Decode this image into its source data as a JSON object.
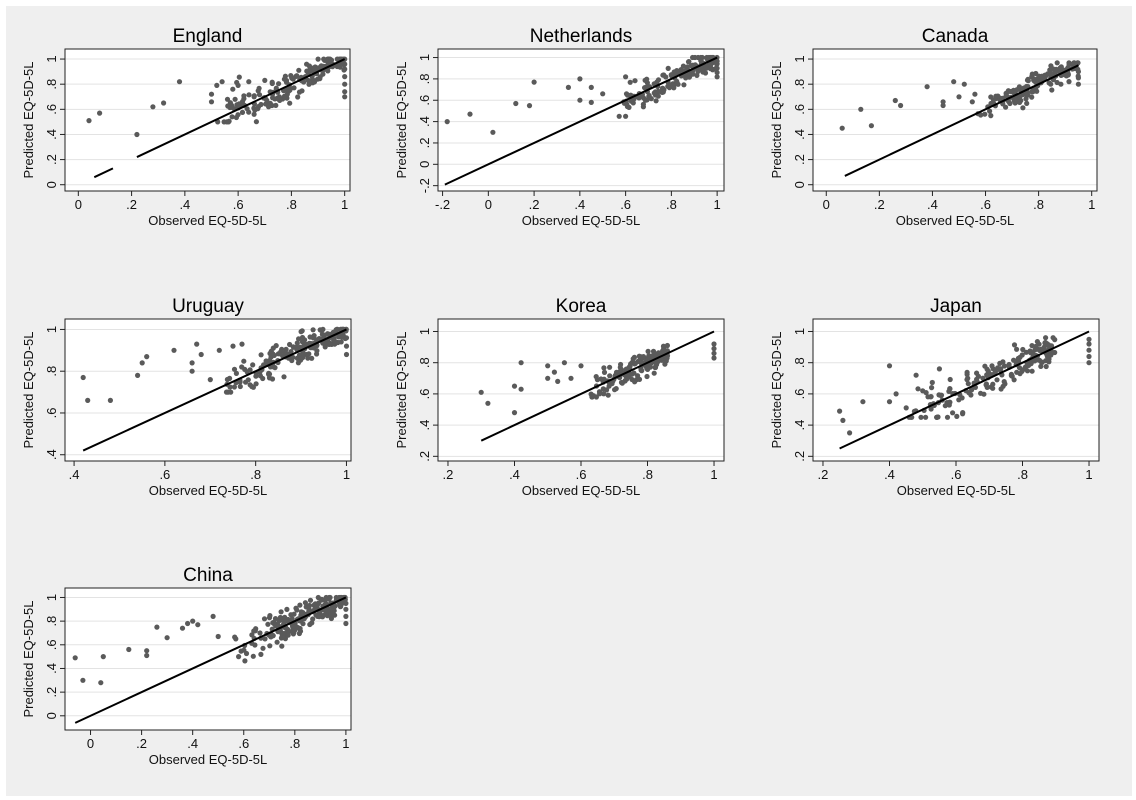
{
  "figure": {
    "background": "#efefef",
    "point_color": "#5a5a5a",
    "line_color": "#000000"
  },
  "chart_data": [
    {
      "type": "scatter",
      "title": "England",
      "xlabel": "Observed EQ-5D-5L",
      "ylabel": "Predicted EQ-5D-5L",
      "xlim": [
        -0.05,
        1.02
      ],
      "ylim": [
        -0.05,
        1.08
      ],
      "xticks": [
        "0",
        ".2",
        ".4",
        ".6",
        ".8",
        "1"
      ],
      "xtick_values": [
        0,
        0.2,
        0.4,
        0.6,
        0.8,
        1
      ],
      "yticks": [
        "0",
        ".2",
        ".4",
        ".6",
        ".8",
        "1"
      ],
      "ytick_values": [
        0,
        0.2,
        0.4,
        0.6,
        0.8,
        1
      ],
      "grid": true,
      "fit_line": [
        [
          0.06,
          0.06
        ],
        [
          1.0,
          1.0
        ]
      ],
      "fit_line_gap": [
        0.13,
        0.22
      ],
      "seed": 11,
      "cluster": {
        "x_lo": 0.52,
        "x_hi": 1.0,
        "n": 170,
        "resid_sd": 0.07,
        "ymin": 0.5,
        "ymax": 1.0
      },
      "points": [
        [
          0.04,
          0.51
        ],
        [
          0.08,
          0.57
        ],
        [
          0.22,
          0.4
        ],
        [
          0.28,
          0.62
        ],
        [
          0.32,
          0.65
        ],
        [
          0.38,
          0.82
        ],
        [
          0.5,
          0.66
        ],
        [
          0.5,
          0.72
        ],
        [
          0.52,
          0.79
        ],
        [
          0.54,
          0.82
        ],
        [
          0.56,
          0.68
        ],
        [
          0.58,
          0.76
        ],
        [
          0.6,
          0.79
        ],
        [
          0.62,
          0.63
        ],
        [
          0.64,
          0.82
        ],
        [
          0.66,
          0.56
        ],
        [
          0.66,
          0.7
        ],
        [
          0.7,
          0.83
        ],
        [
          1.0,
          0.7
        ],
        [
          1.0,
          0.74
        ],
        [
          1.0,
          0.8
        ],
        [
          1.0,
          0.86
        ],
        [
          1.0,
          0.92
        ],
        [
          1.0,
          0.96
        ],
        [
          1.0,
          1.0
        ]
      ]
    },
    {
      "type": "scatter",
      "title": "Netherlands",
      "xlabel": "Observed EQ-5D-5L",
      "ylabel": "Predicted EQ-5D-5L",
      "xlim": [
        -0.22,
        1.03
      ],
      "ylim": [
        -0.25,
        1.08
      ],
      "xticks": [
        "-.2",
        "0",
        ".2",
        ".4",
        ".6",
        ".8",
        "1"
      ],
      "xtick_values": [
        -0.2,
        0,
        0.2,
        0.4,
        0.6,
        0.8,
        1
      ],
      "yticks": [
        "-.2",
        "0",
        ".2",
        ".4",
        ".6",
        ".8",
        "1"
      ],
      "ytick_values": [
        -0.2,
        0,
        0.2,
        0.4,
        0.6,
        0.8,
        1
      ],
      "grid": true,
      "fit_line": [
        [
          -0.19,
          -0.19
        ],
        [
          1.0,
          1.0
        ]
      ],
      "seed": 23,
      "cluster": {
        "x_lo": 0.55,
        "x_hi": 1.0,
        "n": 170,
        "resid_sd": 0.07,
        "ymin": 0.45,
        "ymax": 1.0
      },
      "points": [
        [
          -0.18,
          0.4
        ],
        [
          -0.08,
          0.47
        ],
        [
          0.02,
          0.3
        ],
        [
          0.12,
          0.57
        ],
        [
          0.18,
          0.55
        ],
        [
          0.2,
          0.77
        ],
        [
          0.35,
          0.72
        ],
        [
          0.4,
          0.8
        ],
        [
          0.4,
          0.6
        ],
        [
          0.45,
          0.58
        ],
        [
          0.45,
          0.72
        ],
        [
          0.5,
          0.66
        ],
        [
          0.6,
          0.45
        ],
        [
          0.6,
          0.82
        ],
        [
          1.0,
          0.82
        ],
        [
          1.0,
          0.86
        ],
        [
          1.0,
          0.9
        ],
        [
          1.0,
          0.94
        ]
      ]
    },
    {
      "type": "scatter",
      "title": "Canada",
      "xlabel": "Observed EQ-5D-5L",
      "ylabel": "Predicted EQ-5D-5L",
      "xlim": [
        -0.05,
        1.02
      ],
      "ylim": [
        -0.05,
        1.08
      ],
      "xticks": [
        "0",
        ".2",
        ".4",
        ".6",
        ".8",
        "1"
      ],
      "xtick_values": [
        0,
        0.2,
        0.4,
        0.6,
        0.8,
        1
      ],
      "yticks": [
        "0",
        ".2",
        ".4",
        ".6",
        ".8",
        "1"
      ],
      "ytick_values": [
        0,
        0.2,
        0.4,
        0.6,
        0.8,
        1
      ],
      "grid": true,
      "fit_line": [
        [
          0.07,
          0.07
        ],
        [
          0.95,
          0.95
        ]
      ],
      "seed": 37,
      "cluster": {
        "x_lo": 0.55,
        "x_hi": 0.95,
        "n": 165,
        "resid_sd": 0.06,
        "ymin": 0.55,
        "ymax": 0.97
      },
      "points": [
        [
          0.06,
          0.45
        ],
        [
          0.13,
          0.6
        ],
        [
          0.17,
          0.47
        ],
        [
          0.26,
          0.67
        ],
        [
          0.28,
          0.63
        ],
        [
          0.38,
          0.78
        ],
        [
          0.44,
          0.66
        ],
        [
          0.44,
          0.63
        ],
        [
          0.48,
          0.82
        ],
        [
          0.5,
          0.7
        ],
        [
          0.52,
          0.8
        ],
        [
          0.55,
          0.66
        ],
        [
          0.56,
          0.72
        ],
        [
          0.95,
          0.8
        ],
        [
          0.95,
          0.85
        ],
        [
          0.95,
          0.9
        ]
      ]
    },
    {
      "type": "scatter",
      "title": "Uruguay",
      "xlabel": "Observed EQ-5D-5L",
      "ylabel": "Predicted EQ-5D-5L",
      "xlim": [
        0.38,
        1.01
      ],
      "ylim": [
        0.37,
        1.05
      ],
      "xticks": [
        ".4",
        ".6",
        ".8",
        "1"
      ],
      "xtick_values": [
        0.4,
        0.6,
        0.8,
        1
      ],
      "yticks": [
        ".4",
        ".6",
        ".8",
        "1"
      ],
      "ytick_values": [
        0.4,
        0.6,
        0.8,
        1
      ],
      "grid": true,
      "fit_line": [
        [
          0.42,
          0.42
        ],
        [
          1.0,
          1.0
        ]
      ],
      "seed": 41,
      "cluster": {
        "x_lo": 0.72,
        "x_hi": 1.0,
        "n": 185,
        "resid_sd": 0.045,
        "ymin": 0.7,
        "ymax": 1.0
      },
      "points": [
        [
          0.42,
          0.77
        ],
        [
          0.43,
          0.66
        ],
        [
          0.48,
          0.66
        ],
        [
          0.54,
          0.78
        ],
        [
          0.55,
          0.84
        ],
        [
          0.56,
          0.87
        ],
        [
          0.62,
          0.9
        ],
        [
          0.66,
          0.84
        ],
        [
          0.66,
          0.8
        ],
        [
          0.67,
          0.93
        ],
        [
          0.68,
          0.88
        ],
        [
          0.7,
          0.76
        ],
        [
          0.72,
          0.9
        ],
        [
          0.75,
          0.92
        ],
        [
          0.77,
          0.93
        ],
        [
          1.0,
          0.88
        ],
        [
          1.0,
          0.92
        ],
        [
          1.0,
          0.96
        ]
      ]
    },
    {
      "type": "scatter",
      "title": "Korea",
      "xlabel": "Observed EQ-5D-5L",
      "ylabel": "Predicted EQ-5D-5L",
      "xlim": [
        0.17,
        1.03
      ],
      "ylim": [
        0.17,
        1.08
      ],
      "xticks": [
        ".2",
        ".4",
        ".6",
        ".8",
        "1"
      ],
      "xtick_values": [
        0.2,
        0.4,
        0.6,
        0.8,
        1
      ],
      "yticks": [
        ".2",
        ".4",
        ".6",
        ".8",
        "1"
      ],
      "ytick_values": [
        0.2,
        0.4,
        0.6,
        0.8,
        1
      ],
      "grid": true,
      "fit_line": [
        [
          0.3,
          0.3
        ],
        [
          1.0,
          1.0
        ]
      ],
      "seed": 53,
      "cluster": {
        "x_lo": 0.62,
        "x_hi": 0.86,
        "n": 175,
        "resid_sd": 0.045,
        "ymin": 0.58,
        "ymax": 0.92
      },
      "points": [
        [
          0.3,
          0.61
        ],
        [
          0.32,
          0.54
        ],
        [
          0.4,
          0.48
        ],
        [
          0.4,
          0.65
        ],
        [
          0.42,
          0.63
        ],
        [
          0.42,
          0.8
        ],
        [
          0.5,
          0.7
        ],
        [
          0.5,
          0.78
        ],
        [
          0.52,
          0.74
        ],
        [
          0.53,
          0.68
        ],
        [
          0.55,
          0.8
        ],
        [
          0.57,
          0.7
        ],
        [
          0.6,
          0.78
        ],
        [
          1.0,
          0.83
        ],
        [
          1.0,
          0.86
        ],
        [
          1.0,
          0.89
        ],
        [
          1.0,
          0.92
        ]
      ]
    },
    {
      "type": "scatter",
      "title": "Japan",
      "xlabel": "Observed EQ-5D-5L",
      "ylabel": "Predicted EQ-5D-5L",
      "xlim": [
        0.17,
        1.03
      ],
      "ylim": [
        0.17,
        1.08
      ],
      "xticks": [
        ".2",
        ".4",
        ".6",
        ".8",
        "1"
      ],
      "xtick_values": [
        0.2,
        0.4,
        0.6,
        0.8,
        1
      ],
      "yticks": [
        ".2",
        ".4",
        ".6",
        ".8",
        "1"
      ],
      "ytick_values": [
        0.2,
        0.4,
        0.6,
        0.8,
        1
      ],
      "grid": true,
      "fit_line": [
        [
          0.25,
          0.25
        ],
        [
          1.0,
          1.0
        ]
      ],
      "seed": 67,
      "cluster": {
        "x_lo": 0.45,
        "x_hi": 0.9,
        "n": 175,
        "resid_sd": 0.07,
        "ymin": 0.45,
        "ymax": 0.96
      },
      "points": [
        [
          0.25,
          0.49
        ],
        [
          0.26,
          0.43
        ],
        [
          0.28,
          0.35
        ],
        [
          0.32,
          0.55
        ],
        [
          0.4,
          0.55
        ],
        [
          0.4,
          0.78
        ],
        [
          0.42,
          0.6
        ],
        [
          0.48,
          0.72
        ],
        [
          0.5,
          0.62
        ],
        [
          0.55,
          0.76
        ],
        [
          0.62,
          0.48
        ],
        [
          1.0,
          0.8
        ],
        [
          1.0,
          0.84
        ],
        [
          1.0,
          0.88
        ],
        [
          1.0,
          0.92
        ],
        [
          1.0,
          0.95
        ]
      ]
    },
    {
      "type": "scatter",
      "title": "China",
      "xlabel": "Observed EQ-5D-5L",
      "ylabel": "Predicted EQ-5D-5L",
      "xlim": [
        -0.1,
        1.02
      ],
      "ylim": [
        -0.12,
        1.08
      ],
      "xticks": [
        "0",
        ".2",
        ".4",
        ".6",
        ".8",
        "1"
      ],
      "xtick_values": [
        0,
        0.2,
        0.4,
        0.6,
        0.8,
        1
      ],
      "yticks": [
        "0",
        ".2",
        ".4",
        ".6",
        ".8",
        "1"
      ],
      "ytick_values": [
        0,
        0.2,
        0.4,
        0.6,
        0.8,
        1
      ],
      "grid": true,
      "fit_line": [
        [
          -0.06,
          -0.06
        ],
        [
          1.0,
          1.0
        ]
      ],
      "seed": 79,
      "cluster": {
        "x_lo": 0.55,
        "x_hi": 1.0,
        "n": 185,
        "resid_sd": 0.075,
        "ymin": 0.45,
        "ymax": 1.0
      },
      "points": [
        [
          -0.06,
          0.49
        ],
        [
          -0.03,
          0.3
        ],
        [
          0.04,
          0.28
        ],
        [
          0.05,
          0.5
        ],
        [
          0.15,
          0.56
        ],
        [
          0.22,
          0.51
        ],
        [
          0.22,
          0.55
        ],
        [
          0.26,
          0.75
        ],
        [
          0.3,
          0.66
        ],
        [
          0.36,
          0.74
        ],
        [
          0.38,
          0.78
        ],
        [
          0.4,
          0.8
        ],
        [
          0.42,
          0.77
        ],
        [
          0.48,
          0.84
        ],
        [
          0.5,
          0.67
        ],
        [
          0.58,
          0.5
        ],
        [
          1.0,
          0.78
        ],
        [
          1.0,
          0.84
        ],
        [
          1.0,
          0.9
        ],
        [
          1.0,
          0.95
        ]
      ]
    }
  ]
}
